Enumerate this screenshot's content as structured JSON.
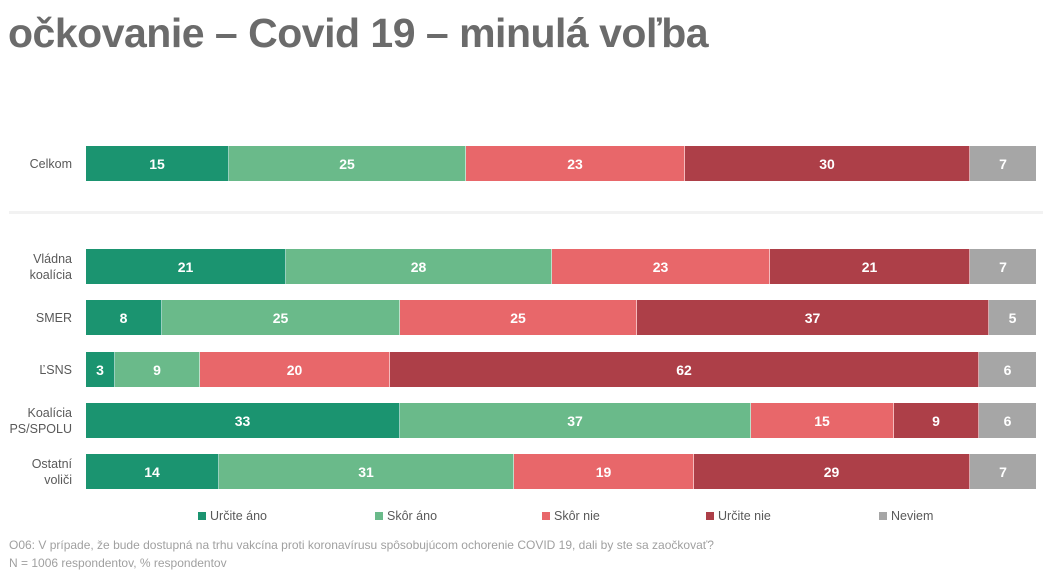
{
  "title": "očkovanie – Covid 19 – minulá voľba",
  "chart_data": {
    "type": "bar",
    "orientation": "horizontal",
    "stacked": true,
    "percent": true,
    "title": "očkovanie – Covid 19 – minulá voľba",
    "categories": [
      "Celkom",
      "Vládna koalícia",
      "SMER",
      "ĽSNS",
      "Koalícia PS/SPOLU",
      "Ostatní voliči"
    ],
    "category_lines": [
      [
        "Celkom"
      ],
      [
        "Vládna",
        "koalícia"
      ],
      [
        "SMER"
      ],
      [
        "ĽSNS"
      ],
      [
        "Koalícia",
        "PS/SPOLU"
      ],
      [
        "Ostatní",
        "voliči"
      ]
    ],
    "series": [
      {
        "name": "Určite áno",
        "color": "#1b9470",
        "values": [
          15,
          21,
          8,
          3,
          33,
          14
        ]
      },
      {
        "name": "Skôr áno",
        "color": "#6aba8a",
        "values": [
          25,
          28,
          25,
          9,
          37,
          31
        ]
      },
      {
        "name": "Skôr nie",
        "color": "#e8676a",
        "values": [
          23,
          23,
          25,
          20,
          15,
          19
        ]
      },
      {
        "name": "Určite nie",
        "color": "#ad3f48",
        "values": [
          30,
          21,
          37,
          62,
          9,
          29
        ]
      },
      {
        "name": "Neviem",
        "color": "#a6a6a6",
        "values": [
          7,
          7,
          5,
          6,
          6,
          7
        ]
      }
    ],
    "legend_position": "bottom",
    "grid": false
  },
  "footnote": {
    "question": "O06: V prípade, že bude dostupná na trhu vakcína proti koronavírusu spôsobujúcom ochorenie COVID 19, dali by ste sa zaočkovať?",
    "sample": "N = 1006 respondentov, % respondentov"
  }
}
